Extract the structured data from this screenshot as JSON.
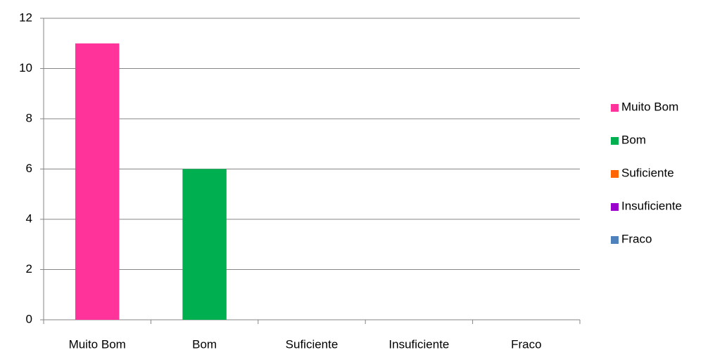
{
  "chart_data": {
    "type": "bar",
    "categories": [
      "Muito Bom",
      "Bom",
      "Suficiente",
      "Insuficiente",
      "Fraco"
    ],
    "values": [
      11,
      6,
      0,
      0,
      0
    ],
    "colors": [
      "#ff3399",
      "#00b050",
      "#ff6600",
      "#9900cc",
      "#4f81bd"
    ],
    "ylim": [
      0,
      12
    ],
    "yticks": [
      0,
      2,
      4,
      6,
      8,
      10,
      12
    ],
    "grid": true,
    "legend": "right"
  }
}
